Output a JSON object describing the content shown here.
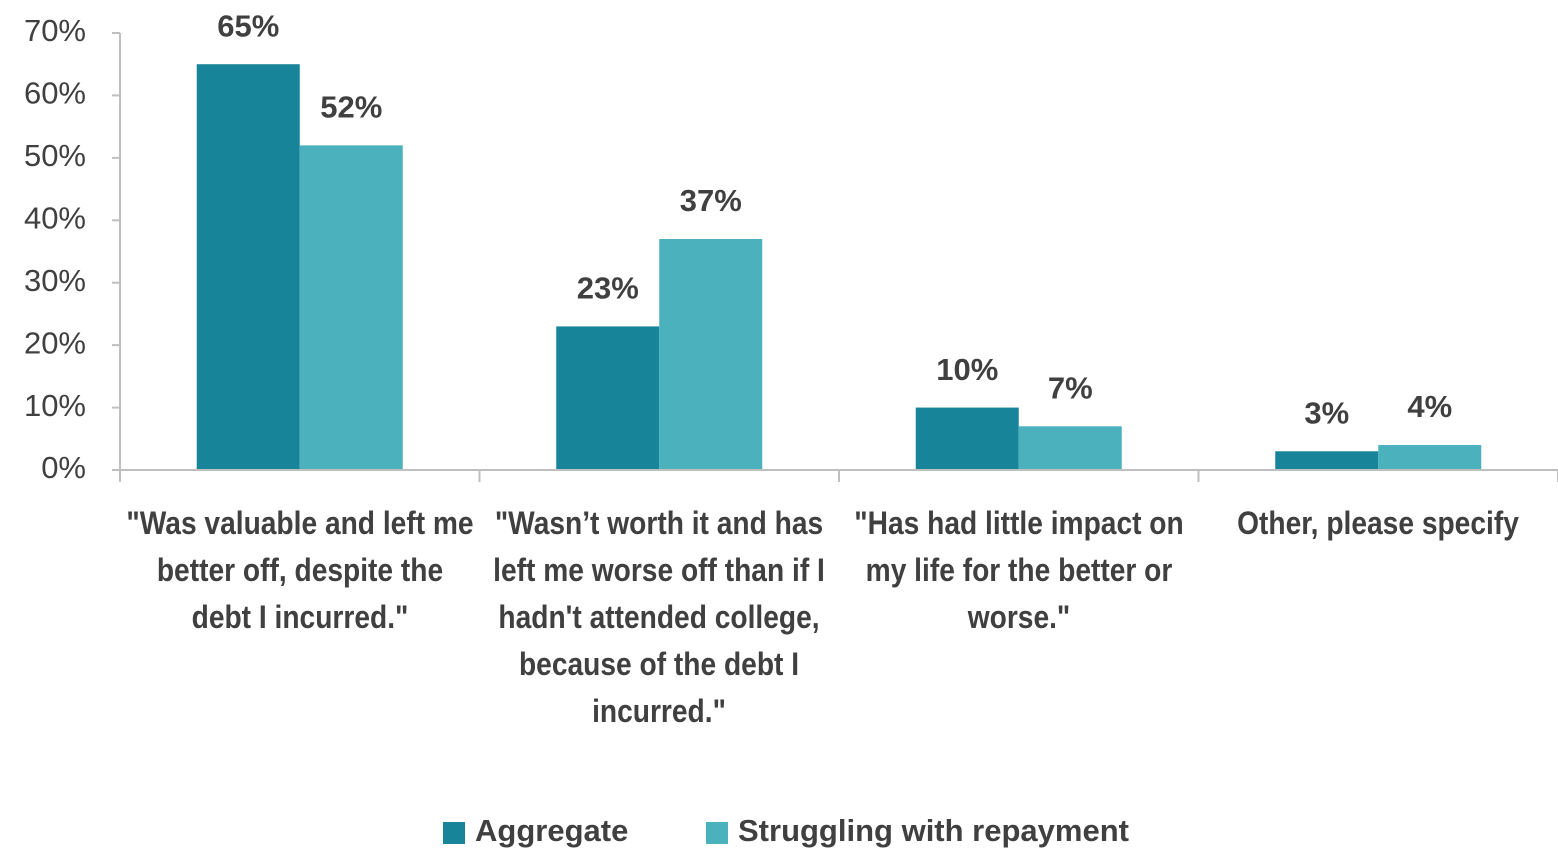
{
  "chart_data": {
    "type": "bar",
    "categories": [
      "\"Was valuable and left me better off, despite the debt I incurred.\"",
      "\"Wasn’t worth it and has left me worse off than if I hadn't attended college, because of the debt I incurred.\"",
      "\"Has had little impact on my life for the better or worse.\"",
      "Other, please specify"
    ],
    "series": [
      {
        "name": "Aggregate",
        "color": "#17849a",
        "values": [
          65,
          23,
          10,
          3
        ],
        "value_labels": [
          "65%",
          "23%",
          "10%",
          "3%"
        ]
      },
      {
        "name": "Struggling with repayment",
        "color": "#4ab1bd",
        "values": [
          52,
          37,
          7,
          4
        ],
        "value_labels": [
          "52%",
          "37%",
          "7%",
          "4%"
        ]
      }
    ],
    "ylim": [
      0,
      70
    ],
    "yticks": [
      {
        "value": 0,
        "label": "0%"
      },
      {
        "value": 10,
        "label": "10%"
      },
      {
        "value": 20,
        "label": "20%"
      },
      {
        "value": 30,
        "label": "30%"
      },
      {
        "value": 40,
        "label": "40%"
      },
      {
        "value": 50,
        "label": "50%"
      },
      {
        "value": 60,
        "label": "60%"
      },
      {
        "value": 70,
        "label": "70%"
      }
    ],
    "grid": false,
    "legend": "bottom"
  }
}
